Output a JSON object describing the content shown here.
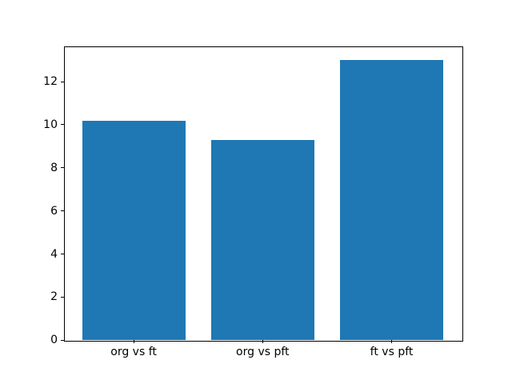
{
  "figure": {
    "background": "#ffffff",
    "spine_color": "#000000",
    "tick_color": "#000000",
    "title": ""
  },
  "chart_data": {
    "type": "bar",
    "title": "",
    "xlabel": "",
    "ylabel": "",
    "categories": [
      "org vs ft",
      "org vs pft",
      "ft vs pft"
    ],
    "values": [
      10.2,
      9.3,
      13.0
    ],
    "bar_color": "#1f77b4",
    "bar_width": 0.8,
    "ylim": [
      0,
      13.65
    ],
    "yticks": [
      0,
      2,
      4,
      6,
      8,
      10,
      12
    ],
    "ytick_labels": [
      "0",
      "2",
      "4",
      "6",
      "8",
      "10",
      "12"
    ],
    "xlim": [
      -0.54,
      2.54
    ],
    "grid": false,
    "legend": null
  }
}
